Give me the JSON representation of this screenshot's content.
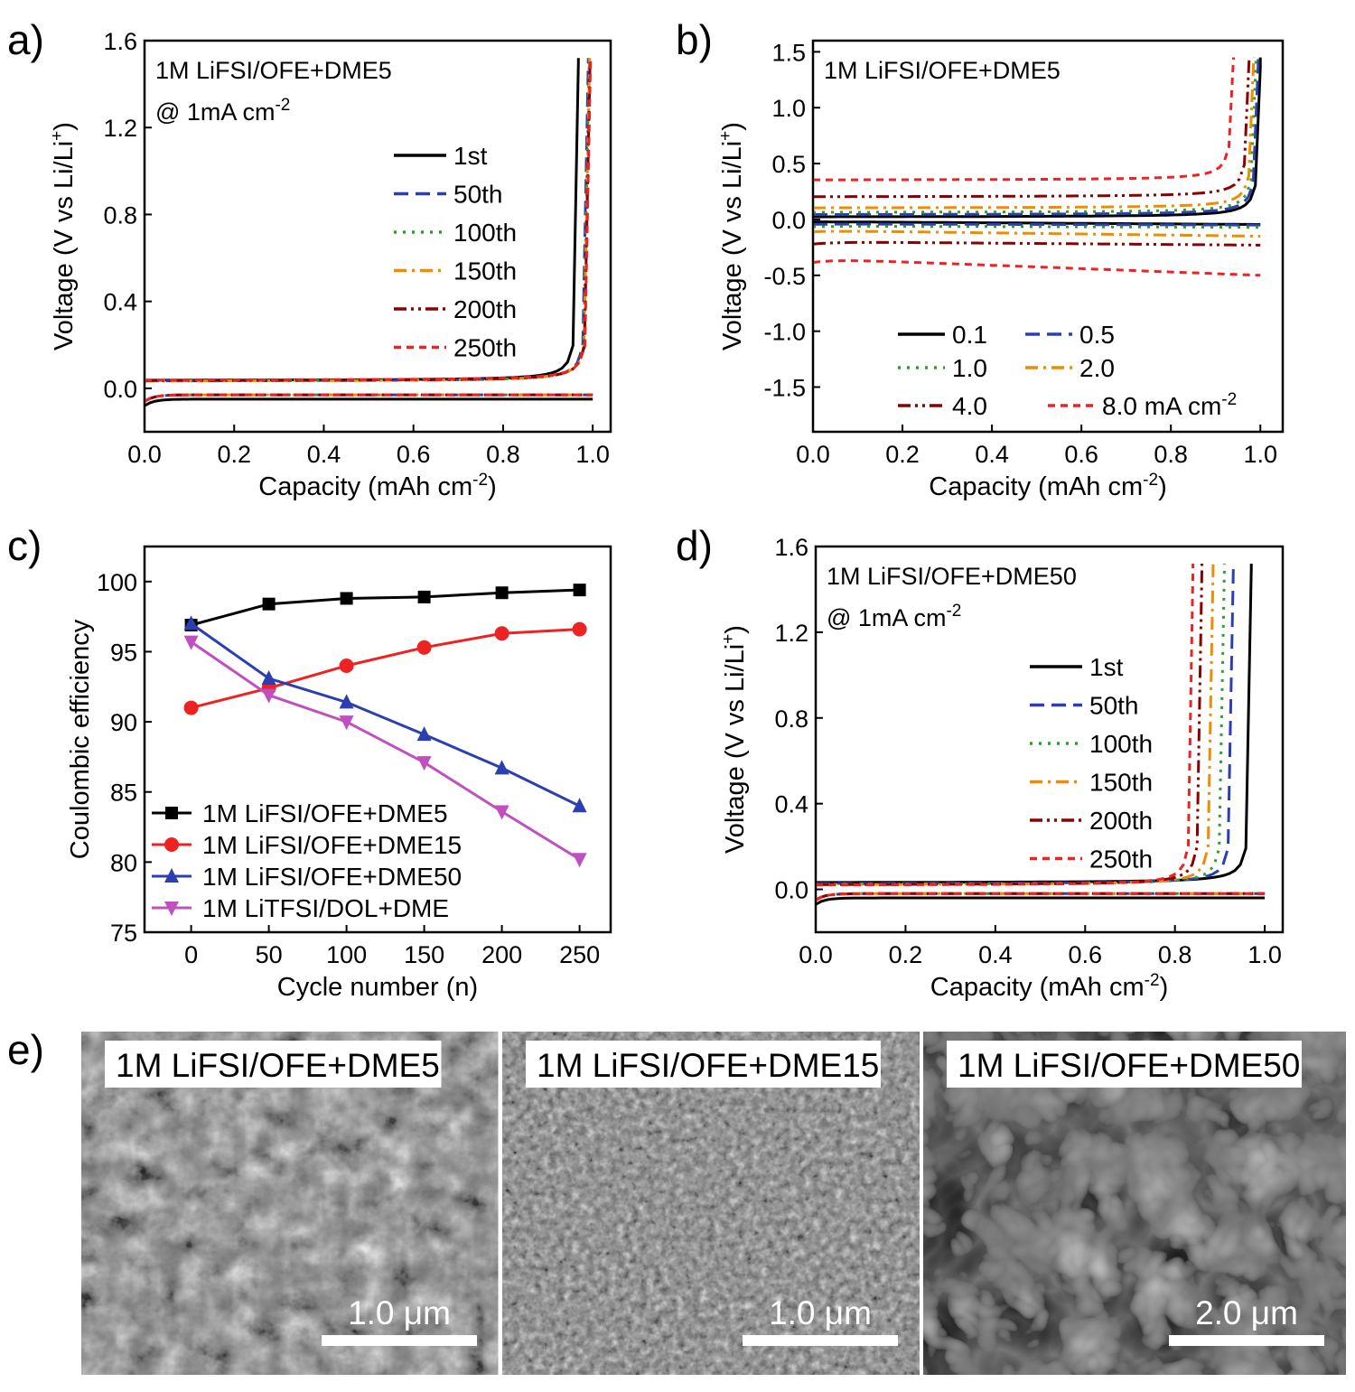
{
  "panel_labels": [
    "a)",
    "b)",
    "c)",
    "d)",
    "e)"
  ],
  "chart_data": [
    {
      "panel": "a)",
      "type": "line",
      "xlabel": "Capacity (mAh cm",
      "xlabel_sup": "-2",
      "xlabel_close": ")",
      "ylabel": "Voltage (V vs Li/Li",
      "ylabel_sup": "+",
      "ylabel_close": ")",
      "xlim": [
        0.0,
        1.04
      ],
      "ylim": [
        -0.2,
        1.6
      ],
      "xticks": [
        "0.0",
        "0.2",
        "0.4",
        "0.6",
        "0.8",
        "1.0"
      ],
      "yticks": [
        "0.0",
        "0.4",
        "0.8",
        "1.2",
        "1.6"
      ],
      "annotation_line1": "1M LiFSI/OFE+DME5",
      "annotation_line2": "@ 1mA cm",
      "annotation_sup": "-2",
      "legend_position": "center-right",
      "series": [
        {
          "name": "1st",
          "color": "#000000",
          "dash": "solid",
          "plating": -0.05,
          "end": 0.968,
          "gap": 0.035
        },
        {
          "name": "50th",
          "color": "#2b3fb0",
          "dash": "dash",
          "plating": -0.03,
          "end": 0.99,
          "gap": 0.032
        },
        {
          "name": "100th",
          "color": "#2ca02c",
          "dash": "dot",
          "plating": -0.03,
          "end": 0.992,
          "gap": 0.032
        },
        {
          "name": "150th",
          "color": "#f08c00",
          "dash": "dashdot",
          "plating": -0.03,
          "end": 0.993,
          "gap": 0.032
        },
        {
          "name": "200th",
          "color": "#8b0000",
          "dash": "dashdotdot",
          "plating": -0.03,
          "end": 0.994,
          "gap": 0.034
        },
        {
          "name": "250th",
          "color": "#ee2222",
          "dash": "shortdash",
          "plating": -0.03,
          "end": 0.995,
          "gap": 0.036
        }
      ]
    },
    {
      "panel": "b)",
      "type": "line",
      "xlabel": "Capacity (mAh cm",
      "xlabel_sup": "-2",
      "xlabel_close": ")",
      "ylabel": "Voltage (V vs Li/Li",
      "ylabel_sup": "+",
      "ylabel_close": ")",
      "xlim": [
        0.0,
        1.05
      ],
      "ylim": [
        -1.9,
        1.6
      ],
      "xticks": [
        "0.0",
        "0.2",
        "0.4",
        "0.6",
        "0.8",
        "1.0"
      ],
      "yticks": [
        "-1.5",
        "-1.0",
        "-0.5",
        "0.0",
        "0.5",
        "1.0",
        "1.5"
      ],
      "annotation_line1": "1M LiFSI/OFE+DME5",
      "legend_position": "bottom",
      "series": [
        {
          "name": "0.1",
          "color": "#000000",
          "dash": "solid",
          "strip": 0.02,
          "peak": 0.045,
          "end": 1.0
        },
        {
          "name": "0.5",
          "color": "#2b3fb0",
          "dash": "dash",
          "strip": 0.04,
          "peak": 0.05,
          "end": 0.995
        },
        {
          "name": "1.0",
          "color": "#2ca02c",
          "dash": "dot",
          "strip": 0.06,
          "peak": 0.07,
          "end": 0.99
        },
        {
          "name": "2.0",
          "color": "#f08c00",
          "dash": "dashdot",
          "strip": 0.1,
          "peak": 0.15,
          "end": 0.985
        },
        {
          "name": "4.0",
          "color": "#8b0000",
          "dash": "dashdotdot",
          "strip": 0.2,
          "peak": 0.23,
          "end": 0.975
        },
        {
          "name": "8.0 mA cm",
          "name_sup": "-2",
          "color": "#ee2222",
          "dash": "shortdash",
          "strip": 0.35,
          "peak": 0.5,
          "end": 0.94
        }
      ]
    },
    {
      "panel": "c)",
      "type": "line",
      "xlabel": "Cycle number (n)",
      "ylabel": "Coulombic efficiency",
      "xlim": [
        -30,
        270
      ],
      "ylim": [
        75,
        102.5
      ],
      "xticks": [
        "0",
        "50",
        "100",
        "150",
        "200",
        "250"
      ],
      "yticks": [
        "75",
        "80",
        "85",
        "90",
        "95",
        "100"
      ],
      "x": [
        0,
        50,
        100,
        150,
        200,
        250
      ],
      "legend_position": "bottom-left",
      "series": [
        {
          "name": "1M LiFSI/OFE+DME5",
          "color": "#000000",
          "marker": "square",
          "values": [
            96.9,
            98.4,
            98.8,
            98.9,
            99.2,
            99.4
          ]
        },
        {
          "name": "1M LiFSI/OFE+DME15",
          "color": "#ee2222",
          "marker": "circle",
          "values": [
            91.0,
            92.4,
            94.0,
            95.3,
            96.3,
            96.6
          ]
        },
        {
          "name": "1M LiFSI/OFE+DME50",
          "color": "#2b3fb0",
          "marker": "triangle-up",
          "values": [
            97.0,
            93.1,
            91.4,
            89.1,
            86.7,
            84.0
          ]
        },
        {
          "name": "1M LiTFSI/DOL+DME",
          "color": "#c04fc0",
          "marker": "triangle-down",
          "values": [
            95.7,
            91.9,
            90.0,
            87.1,
            83.6,
            80.2
          ]
        }
      ]
    },
    {
      "panel": "d)",
      "type": "line",
      "xlabel": "Capacity (mAh cm",
      "xlabel_sup": "-2",
      "xlabel_close": ")",
      "ylabel": "Voltage (V vs Li/Li",
      "ylabel_sup": "+",
      "ylabel_close": ")",
      "xlim": [
        0.0,
        1.04
      ],
      "ylim": [
        -0.2,
        1.6
      ],
      "xticks": [
        "0.0",
        "0.2",
        "0.4",
        "0.6",
        "0.8",
        "1.0"
      ],
      "yticks": [
        "0.0",
        "0.4",
        "0.8",
        "1.2",
        "1.6"
      ],
      "annotation_line1": "1M LiFSI/OFE+DME50",
      "annotation_line2": "@ 1mA cm",
      "annotation_sup": "-2",
      "legend_position": "center-right",
      "series": [
        {
          "name": "1st",
          "color": "#000000",
          "dash": "solid",
          "plating": -0.04,
          "end": 0.97,
          "gap": 0.03
        },
        {
          "name": "50th",
          "color": "#2b3fb0",
          "dash": "dash",
          "plating": -0.02,
          "end": 0.93,
          "gap": 0.025
        },
        {
          "name": "100th",
          "color": "#2ca02c",
          "dash": "dot",
          "plating": -0.02,
          "end": 0.91,
          "gap": 0.022
        },
        {
          "name": "150th",
          "color": "#f08c00",
          "dash": "dashdot",
          "plating": -0.02,
          "end": 0.885,
          "gap": 0.02
        },
        {
          "name": "200th",
          "color": "#8b0000",
          "dash": "dashdotdot",
          "plating": -0.02,
          "end": 0.86,
          "gap": 0.02
        },
        {
          "name": "250th",
          "color": "#ee2222",
          "dash": "shortdash",
          "plating": -0.02,
          "end": 0.84,
          "gap": 0.018
        }
      ]
    }
  ],
  "sem": {
    "panel": "e)",
    "images": [
      {
        "label": "1M LiFSI/OFE+DME5",
        "scale": "1.0 μm",
        "texture": "grains"
      },
      {
        "label": "1M LiFSI/OFE+DME15",
        "scale": "1.0 μm",
        "texture": "fine"
      },
      {
        "label": "1M LiFSI/OFE+DME50",
        "scale": "2.0 μm",
        "texture": "dendrites"
      }
    ]
  }
}
